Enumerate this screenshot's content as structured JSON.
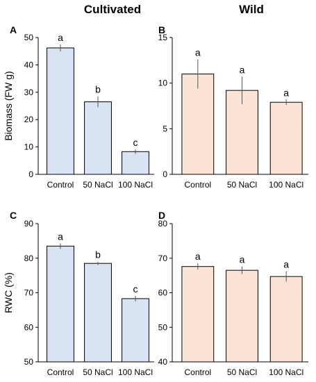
{
  "column_titles": {
    "left": "Cultivated",
    "right": "Wild"
  },
  "chart_data": [
    {
      "type": "bar",
      "panel": "A",
      "categories": [
        "Control",
        "50 NaCl",
        "100 NaCl"
      ],
      "values": [
        46.2,
        26.5,
        8.3
      ],
      "errors": [
        1.3,
        2.0,
        0.8
      ],
      "letters": [
        "a",
        "b",
        "c"
      ],
      "ylabel": "Biomass (FW g)",
      "ylim": [
        0,
        50
      ],
      "yticks": [
        0,
        10,
        20,
        30,
        40,
        50
      ],
      "color": "#dae3f3"
    },
    {
      "type": "bar",
      "panel": "B",
      "categories": [
        "Control",
        "50 NaCl",
        "100 NaCl"
      ],
      "values": [
        11.0,
        9.2,
        7.9
      ],
      "errors": [
        1.6,
        1.5,
        0.3
      ],
      "letters": [
        "a",
        "a",
        "a"
      ],
      "ylabel": "",
      "ylim": [
        0,
        15
      ],
      "yticks": [
        0,
        5,
        10,
        15
      ],
      "color": "#fbe4d5"
    },
    {
      "type": "bar",
      "panel": "C",
      "categories": [
        "Control",
        "50 NaCl",
        "100 NaCl"
      ],
      "values": [
        83.5,
        78.5,
        68.3
      ],
      "errors": [
        0.8,
        0.5,
        0.8
      ],
      "letters": [
        "a",
        "b",
        "c"
      ],
      "ylabel": "RWC (%)",
      "ylim": [
        50,
        90
      ],
      "yticks": [
        50,
        60,
        70,
        80,
        90
      ],
      "color": "#dae3f3"
    },
    {
      "type": "bar",
      "panel": "D",
      "categories": [
        "Control",
        "50 NaCl",
        "100 NaCl"
      ],
      "values": [
        67.6,
        66.5,
        64.7
      ],
      "errors": [
        0.9,
        1.1,
        1.5
      ],
      "letters": [
        "a",
        "a",
        "a"
      ],
      "ylabel": "",
      "ylim": [
        40,
        80
      ],
      "yticks": [
        40,
        50,
        60,
        70,
        80
      ],
      "color": "#fbe4d5"
    }
  ]
}
